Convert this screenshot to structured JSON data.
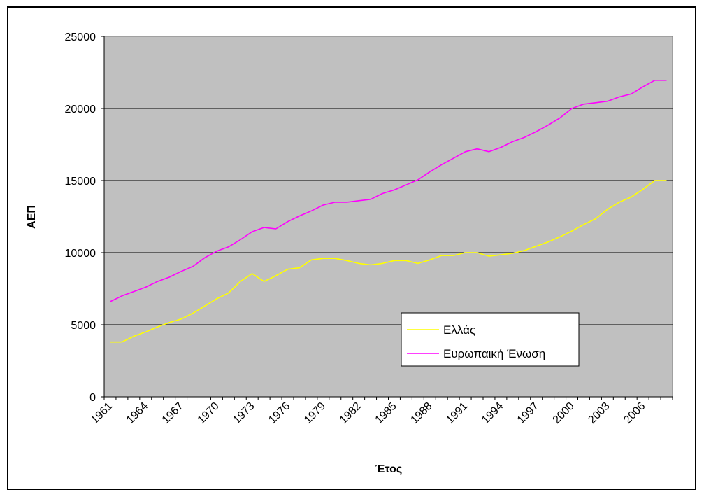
{
  "chart_data": {
    "type": "line",
    "title": "",
    "xlabel": "Έτος",
    "ylabel": "ΑΕΠ",
    "ylim": [
      0,
      25000
    ],
    "y_ticks": [
      0,
      5000,
      10000,
      15000,
      20000,
      25000
    ],
    "grid": "horizontal",
    "plot_background": "#c0c0c0",
    "legend_position": "lower-right",
    "x": [
      1961,
      1962,
      1963,
      1964,
      1965,
      1966,
      1967,
      1968,
      1969,
      1970,
      1971,
      1972,
      1973,
      1974,
      1975,
      1976,
      1977,
      1978,
      1979,
      1980,
      1981,
      1982,
      1983,
      1984,
      1985,
      1986,
      1987,
      1988,
      1989,
      1990,
      1991,
      1992,
      1993,
      1994,
      1995,
      1996,
      1997,
      1998,
      1999,
      2000,
      2001,
      2002,
      2003,
      2004,
      2005,
      2006,
      2007,
      2008
    ],
    "x_tick_labels": [
      "1961",
      "1964",
      "1967",
      "1970",
      "1973",
      "1976",
      "1979",
      "1982",
      "1985",
      "1988",
      "1991",
      "1994",
      "1997",
      "2000",
      "2003",
      "2006"
    ],
    "series": [
      {
        "name": "Ελλάς",
        "color": "#ffff00",
        "values": [
          3800,
          3800,
          4200,
          4500,
          4850,
          5150,
          5400,
          5800,
          6300,
          6800,
          7200,
          8000,
          8550,
          8000,
          8400,
          8850,
          8950,
          9500,
          9600,
          9600,
          9450,
          9250,
          9150,
          9250,
          9450,
          9450,
          9250,
          9500,
          9800,
          9800,
          10000,
          10000,
          9750,
          9850,
          9950,
          10150,
          10450,
          10750,
          11100,
          11500,
          11950,
          12350,
          13000,
          13500,
          13850,
          14400,
          15000,
          15000
        ]
      },
      {
        "name": "Ευρωπαική Ένωση",
        "color": "#ff00ff",
        "values": [
          6600,
          7000,
          7300,
          7600,
          8000,
          8300,
          8700,
          9050,
          9650,
          10100,
          10400,
          10900,
          11450,
          11750,
          11650,
          12150,
          12550,
          12900,
          13300,
          13500,
          13500,
          13600,
          13700,
          14100,
          14350,
          14700,
          15050,
          15600,
          16100,
          16550,
          17000,
          17200,
          17000,
          17300,
          17700,
          18000,
          18400,
          18850,
          19350,
          20000,
          20300,
          20400,
          20500,
          20800,
          21000,
          21500,
          21950,
          21950
        ]
      }
    ]
  }
}
